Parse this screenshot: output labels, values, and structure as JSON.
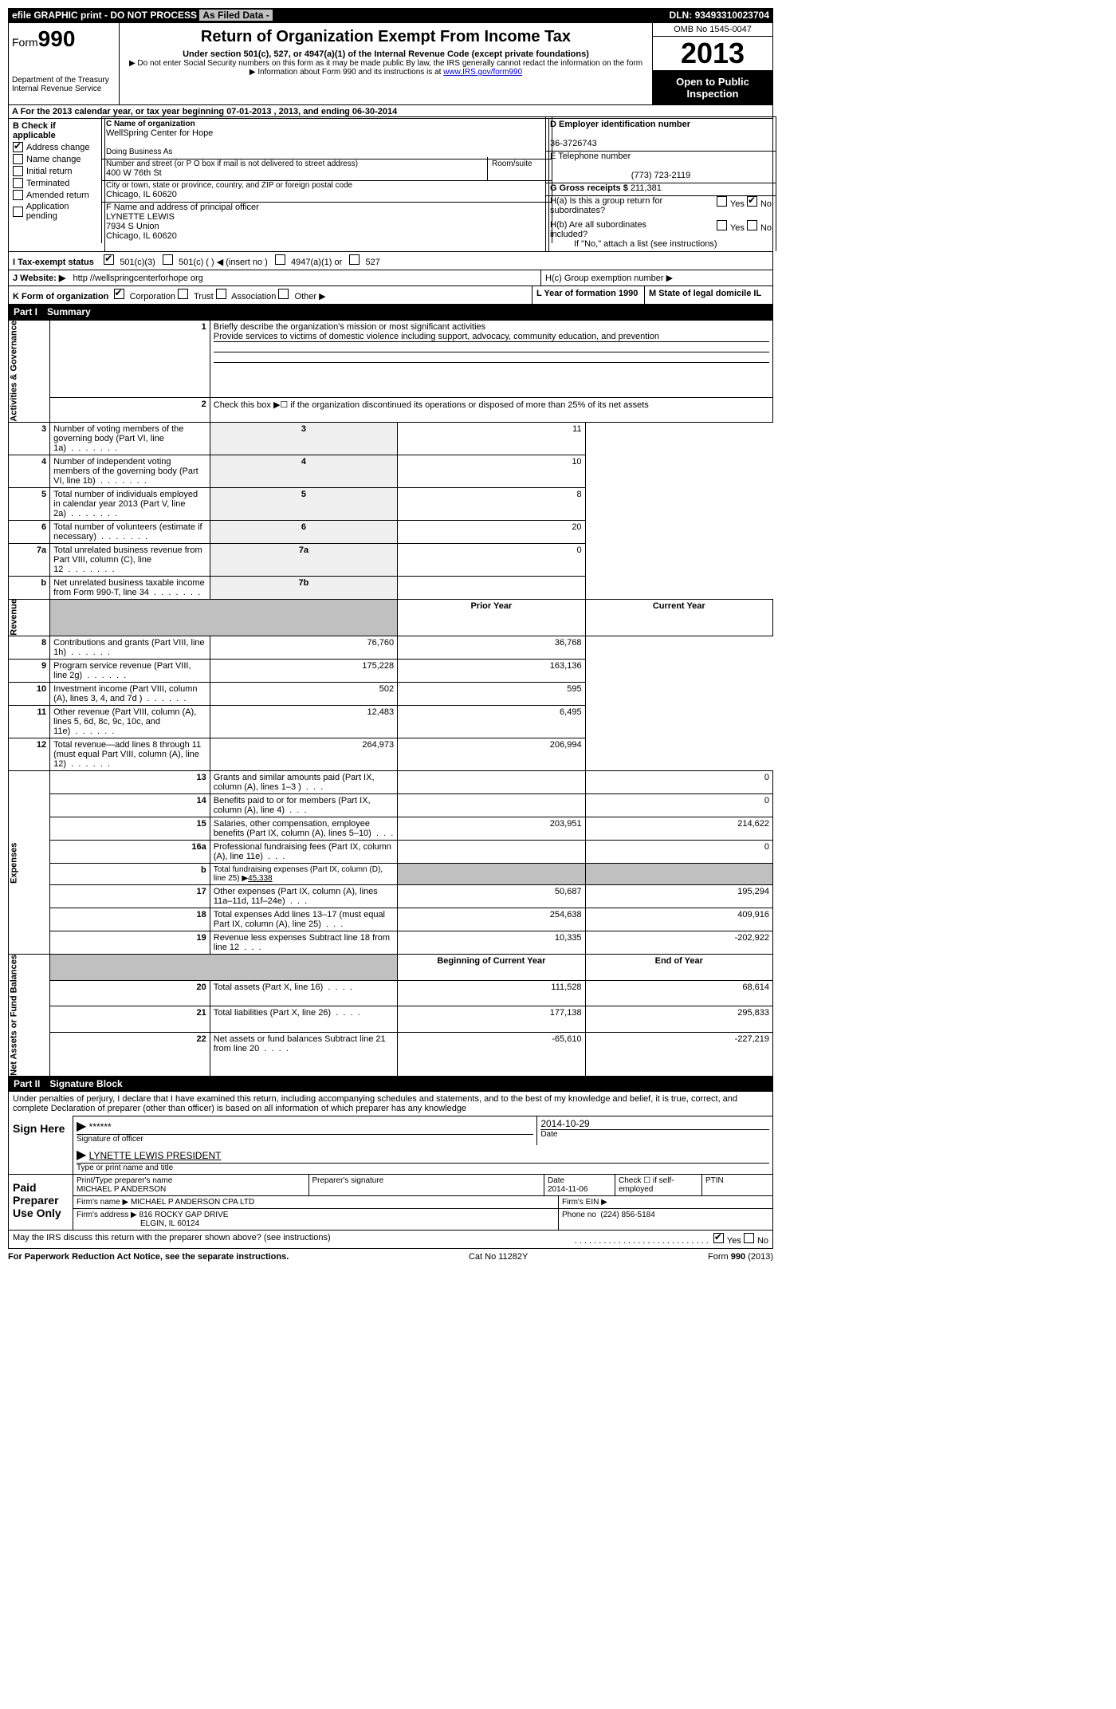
{
  "topbar": {
    "efile": "efile GRAPHIC print - DO NOT PROCESS",
    "asfiled": "As Filed Data -",
    "dln_label": "DLN:",
    "dln": "93493310023704"
  },
  "header": {
    "form_word": "Form",
    "form_num": "990",
    "dept1": "Department of the Treasury",
    "dept2": "Internal Revenue Service",
    "title": "Return of Organization Exempt From Income Tax",
    "subtitle": "Under section 501(c), 527, or 4947(a)(1) of the Internal Revenue Code (except private foundations)",
    "note1": "▶ Do not enter Social Security numbers on this form as it may be made public  By law, the IRS generally cannot redact the information on the form",
    "note2_pre": "▶ Information about Form 990 and its instructions is at ",
    "note2_link": "www.IRS.gov/form990",
    "omb": "OMB No  1545-0047",
    "year": "2013",
    "inspection": "Open to Public Inspection"
  },
  "sectionA": "A  For the 2013 calendar year, or tax year beginning 07-01-2013     , 2013, and ending 06-30-2014",
  "colB": {
    "label": "B  Check if applicable",
    "items": [
      {
        "label": "Address change",
        "checked": true
      },
      {
        "label": "Name change",
        "checked": false
      },
      {
        "label": "Initial return",
        "checked": false
      },
      {
        "label": "Terminated",
        "checked": false
      },
      {
        "label": "Amended return",
        "checked": false
      },
      {
        "label": "Application pending",
        "checked": false
      }
    ]
  },
  "colC": {
    "name_label": "C Name of organization",
    "name": "WellSpring Center for Hope",
    "dba_label": "Doing Business As",
    "dba": "",
    "addr_label": "Number and street (or P O  box if mail is not delivered to street address)",
    "room_label": "Room/suite",
    "addr": "400 W 76th St",
    "city_label": "City or town, state or province, country, and ZIP or foreign postal code",
    "city": "Chicago, IL  60620",
    "f_label": "F   Name and address of principal officer",
    "f_name": "LYNETTE LEWIS",
    "f_addr1": "7934 S Union",
    "f_addr2": "Chicago, IL  60620"
  },
  "colD": {
    "d_label": "D Employer identification number",
    "d_val": "36-3726743",
    "e_label": "E Telephone number",
    "e_val": "(773) 723-2119",
    "g_label": "G Gross receipts $",
    "g_val": "211,381",
    "ha_label": "H(a)  Is this a group return for subordinates?",
    "ha_yes": "Yes",
    "ha_no": "No",
    "hb_label": "H(b)  Are all subordinates included?",
    "hb_note": "If \"No,\" attach a list  (see instructions)",
    "hc_label": "H(c)   Group exemption number ▶"
  },
  "rowI": {
    "label": "I   Tax-exempt status",
    "opt1": "501(c)(3)",
    "opt2": "501(c) (   ) ◀ (insert no )",
    "opt3": "4947(a)(1) or",
    "opt4": "527"
  },
  "rowJ": {
    "label": "J   Website: ▶",
    "val": "http //wellspringcenterforhope org"
  },
  "rowK": {
    "label": "K Form of organization",
    "opts": [
      "Corporation",
      "Trust",
      "Association",
      "Other ▶"
    ],
    "l_label": "L Year of formation  1990",
    "m_label": "M State of legal domicile  IL"
  },
  "part1": {
    "label": "Part I",
    "title": "Summary"
  },
  "summary": {
    "sec1_label": "Activities & Governance",
    "line1_label": "Briefly describe the organization's mission or most significant activities",
    "line1_text": "Provide services to victims of domestic violence including support, advocacy, community education, and prevention",
    "line2": "Check this box ▶☐ if the organization discontinued its operations or disposed of more than 25% of its net assets",
    "rows37": [
      {
        "n": "3",
        "t": "Number of voting members of the governing body (Part VI, line 1a)",
        "c": "3",
        "v": "11"
      },
      {
        "n": "4",
        "t": "Number of independent voting members of the governing body (Part VI, line 1b)",
        "c": "4",
        "v": "10"
      },
      {
        "n": "5",
        "t": "Total number of individuals employed in calendar year 2013 (Part V, line 2a)",
        "c": "5",
        "v": "8"
      },
      {
        "n": "6",
        "t": "Total number of volunteers (estimate if necessary)",
        "c": "6",
        "v": "20"
      },
      {
        "n": "7a",
        "t": "Total unrelated business revenue from Part VIII, column (C), line 12",
        "c": "7a",
        "v": "0"
      },
      {
        "n": "b",
        "t": "Net unrelated business taxable income from Form 990-T, line 34",
        "c": "7b",
        "v": ""
      }
    ],
    "prior_label": "Prior Year",
    "current_label": "Current Year",
    "revenue_label": "Revenue",
    "revenue_rows": [
      {
        "n": "8",
        "t": "Contributions and grants (Part VIII, line 1h)",
        "p": "76,760",
        "c": "36,768"
      },
      {
        "n": "9",
        "t": "Program service revenue (Part VIII, line 2g)",
        "p": "175,228",
        "c": "163,136"
      },
      {
        "n": "10",
        "t": "Investment income (Part VIII, column (A), lines 3, 4, and 7d )",
        "p": "502",
        "c": "595"
      },
      {
        "n": "11",
        "t": "Other revenue (Part VIII, column (A), lines 5, 6d, 8c, 9c, 10c, and 11e)",
        "p": "12,483",
        "c": "6,495"
      },
      {
        "n": "12",
        "t": "Total revenue—add lines 8 through 11 (must equal Part VIII, column (A), line 12)",
        "p": "264,973",
        "c": "206,994"
      }
    ],
    "expenses_label": "Expenses",
    "expenses_rows": [
      {
        "n": "13",
        "t": "Grants and similar amounts paid (Part IX, column (A), lines 1–3 )",
        "p": "",
        "c": "0"
      },
      {
        "n": "14",
        "t": "Benefits paid to or for members (Part IX, column (A), line 4)",
        "p": "",
        "c": "0"
      },
      {
        "n": "15",
        "t": "Salaries, other compensation, employee benefits (Part IX, column (A), lines 5–10)",
        "p": "203,951",
        "c": "214,622"
      },
      {
        "n": "16a",
        "t": "Professional fundraising fees (Part IX, column (A), line 11e)",
        "p": "",
        "c": "0"
      }
    ],
    "line16b_label": "b",
    "line16b_text": "Total fundraising expenses (Part IX, column (D), line 25) ▶",
    "line16b_val": "45,338",
    "expenses_rows2": [
      {
        "n": "17",
        "t": "Other expenses (Part IX, column (A), lines 11a–11d, 11f–24e)",
        "p": "50,687",
        "c": "195,294"
      },
      {
        "n": "18",
        "t": "Total expenses  Add lines 13–17 (must equal Part IX, column (A), line 25)",
        "p": "254,638",
        "c": "409,916"
      },
      {
        "n": "19",
        "t": "Revenue less expenses  Subtract line 18 from line 12",
        "p": "10,335",
        "c": "-202,922"
      }
    ],
    "netassets_label": "Net Assets or Fund Balances",
    "begin_label": "Beginning of Current Year",
    "end_label": "End of Year",
    "net_rows": [
      {
        "n": "20",
        "t": "Total assets (Part X, line 16)",
        "p": "111,528",
        "c": "68,614"
      },
      {
        "n": "21",
        "t": "Total liabilities (Part X, line 26)",
        "p": "177,138",
        "c": "295,833"
      },
      {
        "n": "22",
        "t": "Net assets or fund balances  Subtract line 21 from line 20",
        "p": "-65,610",
        "c": "-227,219"
      }
    ]
  },
  "part2": {
    "label": "Part II",
    "title": "Signature Block",
    "perjury": "Under penalties of perjury, I declare that I have examined this return, including accompanying schedules and statements, and to the best of my knowledge and belief, it is true, correct, and complete  Declaration of preparer (other than officer) is based on all information of which preparer has any knowledge"
  },
  "sign": {
    "here_label": "Sign Here",
    "sig_stars": "******",
    "sig_officer": "Signature of officer",
    "sig_date": "2014-10-29",
    "date_label": "Date",
    "name_title": "LYNETTE LEWIS PRESIDENT",
    "name_title_label": "Type or print name and title"
  },
  "paid": {
    "label": "Paid Preparer Use Only",
    "prep_name_label": "Print/Type preparer's name",
    "prep_name": "MICHAEL P ANDERSON",
    "prep_sig_label": "Preparer's signature",
    "prep_date_label": "Date",
    "prep_date": "2014-11-06",
    "self_label": "Check ☐ if self-employed",
    "ptin_label": "PTIN",
    "firm_name_label": "Firm's name    ▶",
    "firm_name": "MICHAEL P ANDERSON CPA LTD",
    "firm_ein_label": "Firm's EIN ▶",
    "firm_addr_label": "Firm's address ▶",
    "firm_addr1": "816 ROCKY GAP DRIVE",
    "firm_addr2": "ELGIN, IL  60124",
    "phone_label": "Phone no",
    "phone": "(224) 856-5184"
  },
  "discuss": {
    "text": "May the IRS discuss this return with the preparer shown above? (see instructions)",
    "yes": "Yes",
    "no": "No"
  },
  "footer": {
    "left": "For Paperwork Reduction Act Notice, see the separate instructions.",
    "center": "Cat  No  11282Y",
    "right": "Form 990 (2013)"
  }
}
